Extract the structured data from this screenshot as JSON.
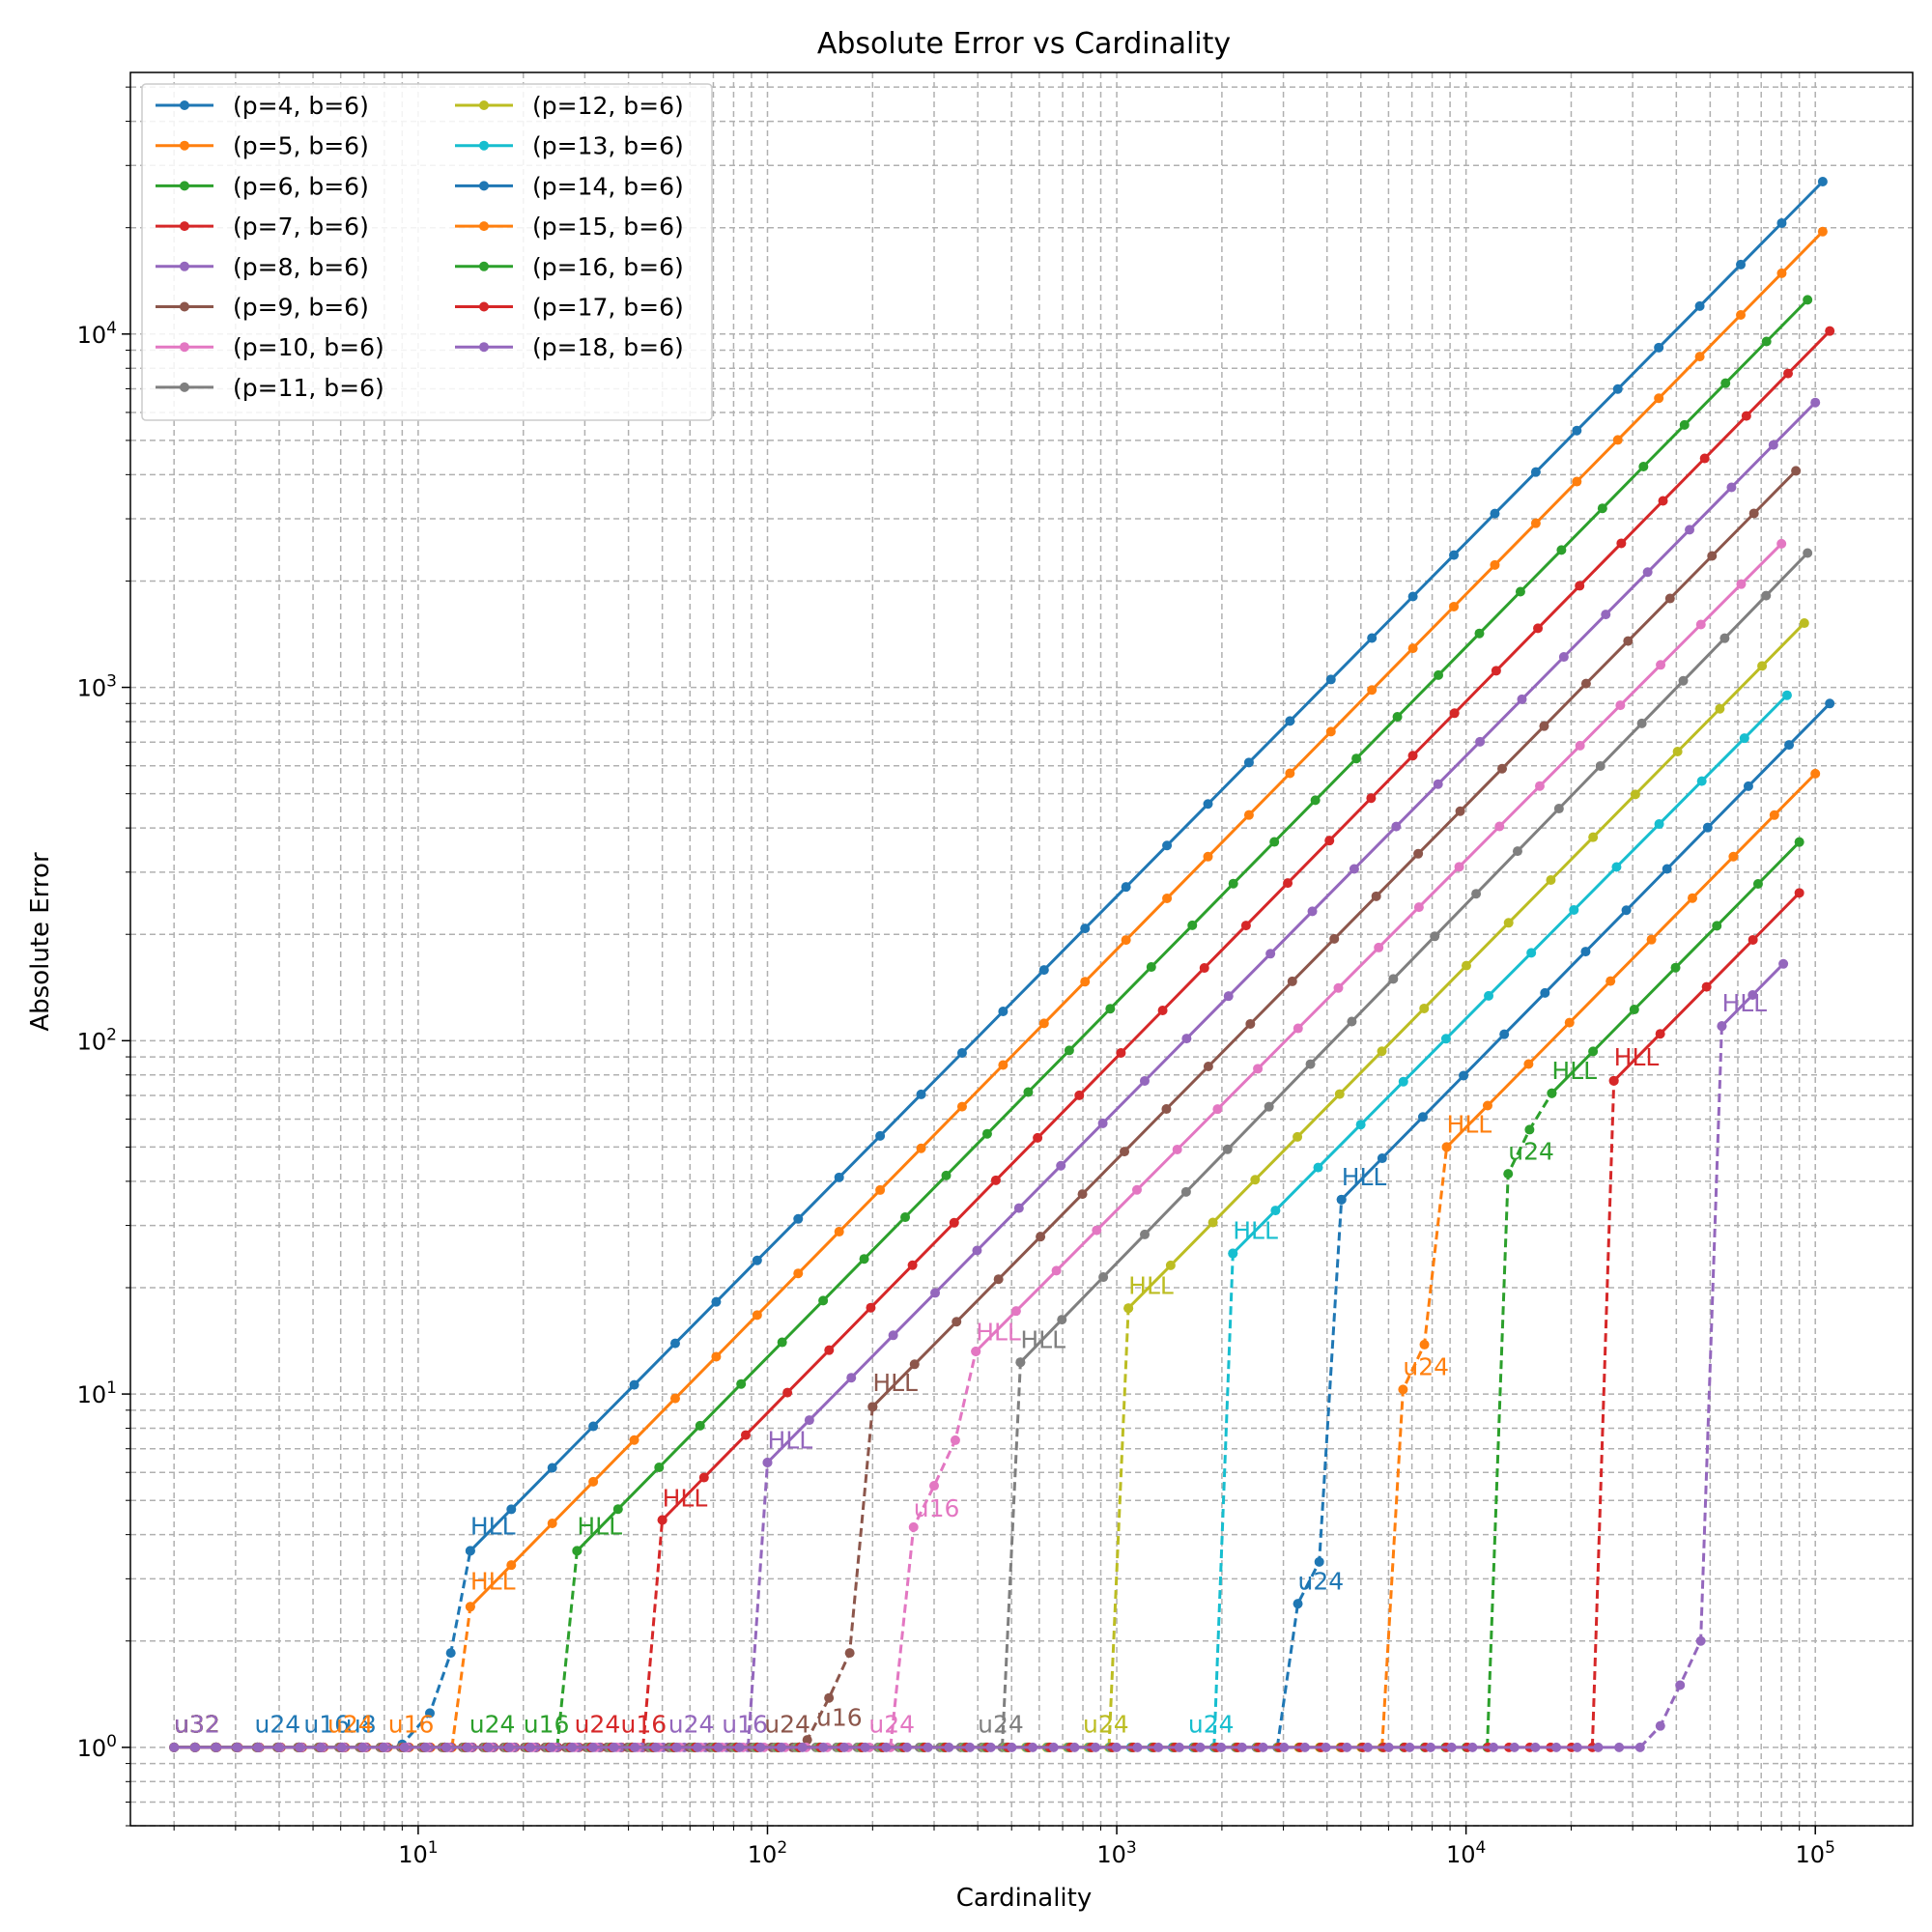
{
  "chart_data": {
    "type": "line",
    "title": "Absolute Error vs Cardinality",
    "xlabel": "Cardinality",
    "ylabel": "Absolute Error",
    "xscale": "log",
    "yscale": "log",
    "xlim": [
      1.5,
      190000
    ],
    "ylim": [
      0.6,
      55000
    ],
    "grid": true,
    "legend_position": "top-left",
    "legend_columns": 2,
    "x_ticks": [
      {
        "value": 10,
        "label": "10^1"
      },
      {
        "value": 100,
        "label": "10^2"
      },
      {
        "value": 1000,
        "label": "10^3"
      },
      {
        "value": 10000,
        "label": "10^4"
      },
      {
        "value": 100000,
        "label": "10^5"
      }
    ],
    "y_ticks": [
      {
        "value": 1,
        "label": "10^0"
      },
      {
        "value": 10,
        "label": "10^1"
      },
      {
        "value": 100,
        "label": "10^2"
      },
      {
        "value": 1000,
        "label": "10^3"
      },
      {
        "value": 10000,
        "label": "10^4"
      }
    ],
    "series": [
      {
        "name": "(p=4, b=6)",
        "color": "#1f77b4",
        "p": 4,
        "flat_end": 8,
        "rise": [
          [
            9,
            1.02
          ],
          [
            10.8,
            1.25
          ],
          [
            12.4,
            1.85
          ],
          [
            14.1,
            3.6
          ]
        ],
        "hll_start": 14.1,
        "hll_y": 3.6,
        "x_end": 105000,
        "y_end": 27000,
        "annotations": [
          {
            "text": "u32",
            "x": 2,
            "y": 1.1
          },
          {
            "text": "u24",
            "x": 3.4,
            "y": 1.1
          },
          {
            "text": "u16",
            "x": 4.7,
            "y": 1.1
          },
          {
            "text": "u8",
            "x": 6.2,
            "y": 1.1
          },
          {
            "text": "HLL",
            "x": 14.1,
            "y": 4.0
          }
        ]
      },
      {
        "name": "(p=5, b=6)",
        "color": "#ff7f0e",
        "p": 5,
        "flat_end": 12.5,
        "rise": [
          [
            14.1,
            2.5
          ]
        ],
        "hll_start": 14.1,
        "hll_y": 2.5,
        "x_end": 105000,
        "y_end": 19500,
        "annotations": [
          {
            "text": "u32",
            "x": 2,
            "y": 1.1
          },
          {
            "text": "u24",
            "x": 5.5,
            "y": 1.1
          },
          {
            "text": "u16",
            "x": 8.2,
            "y": 1.1
          },
          {
            "text": "HLL",
            "x": 14.1,
            "y": 2.8
          }
        ]
      },
      {
        "name": "(p=6, b=6)",
        "color": "#2ca02c",
        "p": 6,
        "flat_end": 25,
        "rise": [
          [
            28.5,
            3.6
          ]
        ],
        "hll_start": 28.5,
        "hll_y": 3.6,
        "x_end": 95000,
        "y_end": 12500,
        "annotations": [
          {
            "text": "u32",
            "x": 2,
            "y": 1.1
          },
          {
            "text": "u24",
            "x": 14,
            "y": 1.1
          },
          {
            "text": "u16",
            "x": 20,
            "y": 1.1
          },
          {
            "text": "HLL",
            "x": 28.5,
            "y": 4.0
          }
        ]
      },
      {
        "name": "(p=7, b=6)",
        "color": "#d62728",
        "p": 7,
        "flat_end": 44,
        "rise": [
          [
            50,
            4.4
          ]
        ],
        "hll_start": 50,
        "hll_y": 4.4,
        "x_end": 110000,
        "y_end": 10200,
        "annotations": [
          {
            "text": "u32",
            "x": 2,
            "y": 1.1
          },
          {
            "text": "u24",
            "x": 28,
            "y": 1.1
          },
          {
            "text": "u16",
            "x": 38,
            "y": 1.1
          },
          {
            "text": "HLL",
            "x": 50,
            "y": 4.8
          }
        ]
      },
      {
        "name": "(p=8, b=6)",
        "color": "#9467bd",
        "p": 8,
        "flat_end": 88,
        "rise": [
          [
            100,
            6.4
          ]
        ],
        "hll_start": 100,
        "hll_y": 6.4,
        "x_end": 100000,
        "y_end": 6400,
        "annotations": [
          {
            "text": "u32",
            "x": 2,
            "y": 1.1
          },
          {
            "text": "u24",
            "x": 52,
            "y": 1.1
          },
          {
            "text": "u16",
            "x": 74,
            "y": 1.1
          },
          {
            "text": "HLL",
            "x": 100,
            "y": 7.0
          }
        ]
      },
      {
        "name": "(p=9, b=6)",
        "color": "#8c564b",
        "p": 9,
        "flat_end": 118,
        "rise": [
          [
            130,
            1.05
          ],
          [
            150,
            1.38
          ],
          [
            172,
            1.85
          ],
          [
            200,
            9.2
          ]
        ],
        "hll_start": 200,
        "hll_y": 9.2,
        "x_end": 88000,
        "y_end": 4100,
        "annotations": [
          {
            "text": "u32",
            "x": 2,
            "y": 1.1
          },
          {
            "text": "u24",
            "x": 98,
            "y": 1.1
          },
          {
            "text": "u16",
            "x": 138,
            "y": 1.15
          },
          {
            "text": "HLL",
            "x": 200,
            "y": 10.2
          }
        ]
      },
      {
        "name": "(p=10, b=6)",
        "color": "#e377c2",
        "p": 10,
        "flat_end": 225,
        "rise": [
          [
            262,
            4.2
          ],
          [
            300,
            5.5
          ],
          [
            345,
            7.4
          ],
          [
            395,
            13.2
          ]
        ],
        "hll_start": 395,
        "hll_y": 13.2,
        "x_end": 80000,
        "y_end": 2550,
        "annotations": [
          {
            "text": "u32",
            "x": 2,
            "y": 1.1
          },
          {
            "text": "u24",
            "x": 195,
            "y": 1.1
          },
          {
            "text": "u16",
            "x": 262,
            "y": 4.5
          },
          {
            "text": "HLL",
            "x": 395,
            "y": 14.2
          }
        ]
      },
      {
        "name": "(p=11, b=6)",
        "color": "#7f7f7f",
        "p": 11,
        "flat_end": 470,
        "rise": [
          [
            530,
            12.3
          ]
        ],
        "hll_start": 530,
        "hll_y": 12.3,
        "x_end": 95000,
        "y_end": 2400,
        "annotations": [
          {
            "text": "u32",
            "x": 2,
            "y": 1.1
          },
          {
            "text": "u24",
            "x": 400,
            "y": 1.1
          },
          {
            "text": "HLL",
            "x": 530,
            "y": 13.5
          }
        ]
      },
      {
        "name": "(p=12, b=6)",
        "color": "#bcbd22",
        "p": 12,
        "flat_end": 950,
        "rise": [
          [
            1080,
            17.5
          ]
        ],
        "hll_start": 1080,
        "hll_y": 17.5,
        "x_end": 93000,
        "y_end": 1520,
        "annotations": [
          {
            "text": "u32",
            "x": 2,
            "y": 1.1
          },
          {
            "text": "u24",
            "x": 800,
            "y": 1.1
          },
          {
            "text": "HLL",
            "x": 1080,
            "y": 19.2
          }
        ]
      },
      {
        "name": "(p=13, b=6)",
        "color": "#17becf",
        "p": 13,
        "flat_end": 1900,
        "rise": [
          [
            2150,
            25
          ]
        ],
        "hll_start": 2150,
        "hll_y": 25,
        "x_end": 83000,
        "y_end": 950,
        "annotations": [
          {
            "text": "u32",
            "x": 2,
            "y": 1.1
          },
          {
            "text": "u24",
            "x": 1600,
            "y": 1.1
          },
          {
            "text": "HLL",
            "x": 2150,
            "y": 27.5
          }
        ]
      },
      {
        "name": "(p=14, b=6)",
        "color": "#1f77b4",
        "p": 14,
        "flat_end": 2880,
        "rise": [
          [
            3300,
            2.55
          ],
          [
            3800,
            3.35
          ],
          [
            4400,
            35.5
          ]
        ],
        "hll_start": 4400,
        "hll_y": 35.5,
        "x_end": 110000,
        "y_end": 900,
        "annotations": [
          {
            "text": "u32",
            "x": 2,
            "y": 1.1
          },
          {
            "text": "u24",
            "x": 3300,
            "y": 2.8
          },
          {
            "text": "HLL",
            "x": 4400,
            "y": 39
          }
        ]
      },
      {
        "name": "(p=15, b=6)",
        "color": "#ff7f0e",
        "p": 15,
        "flat_end": 5750,
        "rise": [
          [
            6600,
            10.3
          ],
          [
            7600,
            13.8
          ],
          [
            8800,
            50
          ]
        ],
        "hll_start": 8800,
        "hll_y": 50,
        "x_end": 100000,
        "y_end": 570,
        "annotations": [
          {
            "text": "u32",
            "x": 2,
            "y": 1.1
          },
          {
            "text": "u24",
            "x": 6600,
            "y": 11.3
          },
          {
            "text": "HLL",
            "x": 8800,
            "y": 55
          }
        ]
      },
      {
        "name": "(p=16, b=6)",
        "color": "#2ca02c",
        "p": 16,
        "flat_end": 11500,
        "rise": [
          [
            13200,
            42
          ],
          [
            15200,
            56
          ],
          [
            17600,
            71
          ]
        ],
        "hll_start": 17600,
        "hll_y": 71,
        "x_end": 90000,
        "y_end": 365,
        "annotations": [
          {
            "text": "u32",
            "x": 2,
            "y": 1.1
          },
          {
            "text": "u24",
            "x": 13200,
            "y": 46
          },
          {
            "text": "HLL",
            "x": 17600,
            "y": 78
          }
        ]
      },
      {
        "name": "(p=17, b=6)",
        "color": "#d62728",
        "p": 17,
        "flat_end": 23000,
        "rise": [
          [
            26500,
            77
          ]
        ],
        "hll_start": 26500,
        "hll_y": 77,
        "x_end": 90000,
        "y_end": 262,
        "annotations": [
          {
            "text": "u32",
            "x": 2,
            "y": 1.1
          },
          {
            "text": "HLL",
            "x": 26500,
            "y": 85
          }
        ]
      },
      {
        "name": "(p=18, b=6)",
        "color": "#9467bd",
        "p": 18,
        "flat_end": 31500,
        "rise": [
          [
            36000,
            1.15
          ],
          [
            41000,
            1.5
          ],
          [
            47000,
            2.0
          ],
          [
            54000,
            110
          ]
        ],
        "hll_start": 54000,
        "hll_y": 110,
        "x_end": 81000,
        "y_end": 165,
        "annotations": [
          {
            "text": "u32",
            "x": 2,
            "y": 1.1
          },
          {
            "text": "HLL",
            "x": 54000,
            "y": 121
          }
        ]
      }
    ]
  }
}
